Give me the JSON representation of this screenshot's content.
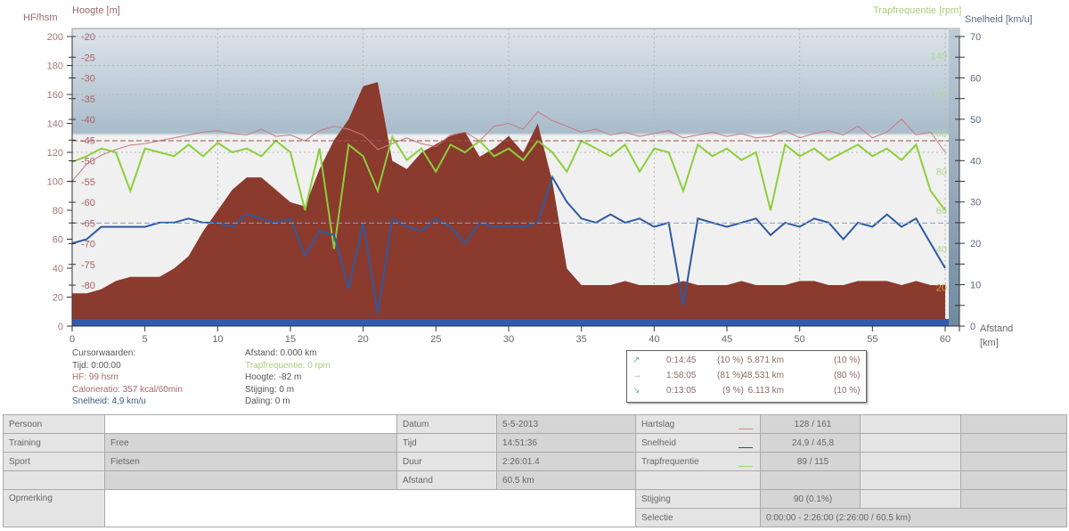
{
  "chart_data": {
    "type": "line",
    "x_label": "Afstand",
    "x_unit": "[km]",
    "x_ticks": [
      0,
      5,
      10,
      15,
      20,
      25,
      30,
      35,
      40,
      45,
      50,
      55,
      60
    ],
    "xlim": [
      0,
      61
    ],
    "axes": {
      "hf": {
        "label": "HF/hsm",
        "ticks": [
          0,
          20,
          40,
          60,
          80,
          100,
          120,
          140,
          160,
          180,
          200
        ],
        "range": [
          0,
          200
        ]
      },
      "altitude": {
        "label": "Hoogte [m]",
        "ticks": [
          -20,
          -25,
          -30,
          -35,
          -40,
          -45,
          -50,
          -55,
          -60,
          -65,
          -70,
          -75,
          -80
        ],
        "range": [
          -86,
          -20
        ]
      },
      "cadence": {
        "label": "Trapfrequentie [rpm]",
        "ticks": [
          20,
          40,
          60,
          80,
          100,
          120,
          140
        ],
        "range": [
          0,
          150
        ]
      },
      "speed": {
        "label": "Snelheid [km/u]",
        "ticks": [
          0,
          10,
          20,
          30,
          40,
          50,
          60,
          70
        ],
        "range": [
          0,
          70
        ]
      }
    },
    "x": [
      0,
      1,
      2,
      3,
      4,
      5,
      6,
      7,
      8,
      9,
      10,
      11,
      12,
      13,
      14,
      15,
      16,
      17,
      18,
      19,
      20,
      21,
      22,
      23,
      24,
      25,
      26,
      27,
      28,
      29,
      30,
      31,
      32,
      33,
      34,
      35,
      36,
      37,
      38,
      39,
      40,
      41,
      42,
      43,
      44,
      45,
      46,
      47,
      48,
      49,
      50,
      51,
      52,
      53,
      54,
      55,
      56,
      57,
      58,
      59,
      60
    ],
    "series": [
      {
        "name": "Hoogte",
        "color": "#8b3a2e",
        "values": [
          -82,
          -82,
          -81,
          -79,
          -78,
          -78,
          -78,
          -76,
          -73,
          -67,
          -62,
          -57,
          -54,
          -54,
          -57,
          -60,
          -61,
          -52,
          -45,
          -40,
          -32,
          -31,
          -50,
          -52,
          -48,
          -46,
          -44,
          -43,
          -49,
          -47,
          -44,
          -48,
          -41,
          -55,
          -76,
          -80,
          -80,
          -80,
          -79,
          -80,
          -80,
          -80,
          -79,
          -80,
          -80,
          -80,
          -79,
          -80,
          -80,
          -80,
          -79,
          -79,
          -80,
          -80,
          -79,
          -79,
          -79,
          -80,
          -79,
          -80,
          -80
        ]
      },
      {
        "name": "Hartslag",
        "color": "#c77b80",
        "values": [
          100,
          112,
          118,
          122,
          125,
          126,
          128,
          130,
          132,
          134,
          135,
          133,
          132,
          136,
          131,
          132,
          128,
          135,
          138,
          136,
          132,
          122,
          126,
          130,
          126,
          124,
          132,
          134,
          128,
          138,
          140,
          136,
          148,
          142,
          138,
          134,
          136,
          132,
          134,
          131,
          133,
          135,
          130,
          132,
          134,
          131,
          133,
          130,
          131,
          135,
          130,
          133,
          135,
          132,
          138,
          130,
          134,
          143,
          132,
          134,
          120
        ]
      },
      {
        "name": "Trapfrequentie",
        "color": "#8ccf3a",
        "values": [
          85,
          88,
          92,
          90,
          70,
          92,
          90,
          88,
          94,
          88,
          95,
          90,
          92,
          88,
          96,
          90,
          60,
          92,
          40,
          94,
          88,
          70,
          98,
          86,
          92,
          80,
          94,
          90,
          96,
          88,
          92,
          86,
          96,
          90,
          80,
          96,
          92,
          88,
          94,
          80,
          92,
          90,
          70,
          94,
          88,
          92,
          86,
          90,
          60,
          94,
          88,
          92,
          86,
          90,
          94,
          88,
          92,
          86,
          94,
          70,
          60
        ]
      },
      {
        "name": "Snelheid",
        "color": "#2c5aa0",
        "values": [
          20,
          21,
          24,
          24,
          24,
          24,
          25,
          25,
          26,
          25,
          25,
          24,
          27,
          26,
          25,
          26,
          17,
          23,
          22,
          9,
          25,
          3,
          26,
          24,
          23,
          26,
          24,
          20,
          25,
          24,
          24,
          24,
          25,
          36,
          30,
          26,
          25,
          27,
          25,
          26,
          24,
          25,
          5,
          26,
          25,
          24,
          25,
          26,
          22,
          25,
          24,
          26,
          25,
          21,
          25,
          24,
          27,
          24,
          26,
          20,
          14
        ]
      }
    ],
    "averages": {
      "hf": 128,
      "speed": 24.9
    },
    "grid": true
  },
  "cursor": {
    "title": "Cursorwaarden:",
    "tijd": "Tijd: 0:00:00",
    "hf": "HF: 99 hsm",
    "calorie": "Calorieratio: 357 kcal/60min",
    "snelheid": "Snelheid: 4,9 km/u",
    "afstand": "Afstand: 0.000 km",
    "trap": "Trapfrequentie: 0 rpm",
    "hoogte": "Hoogte: -82 m",
    "stijging": "Stijging: 0 m",
    "daling": "Daling: 0 m"
  },
  "slope_stats": [
    {
      "icon": "↗",
      "time": "0:14:45",
      "time_pct": "(10 %)",
      "dist": "5.871 km",
      "dist_pct": "(10 %)"
    },
    {
      "icon": "→",
      "time": "1:58:05",
      "time_pct": "(81 %)",
      "dist": "48.531 km",
      "dist_pct": "(80 %)"
    },
    {
      "icon": "↘",
      "time": "0:13:05",
      "time_pct": "(9 %)",
      "dist": "6.113 km",
      "dist_pct": "(10 %)"
    }
  ],
  "table": {
    "persoon": "Persoon",
    "persoon_val": "",
    "training": "Training",
    "training_val": "Free",
    "sport": "Sport",
    "sport_val": "Fietsen",
    "opmerking": "Opmerking",
    "datum": "Datum",
    "datum_val": "5-5-2013",
    "tijd": "Tijd",
    "tijd_val": "14:51:36",
    "duur": "Duur",
    "duur_val": "2:26:01.4",
    "afstand": "Afstand",
    "afstand_val": "60.5 km",
    "hartslag": "Hartslag",
    "hartslag_val": "128 / 161",
    "hartslag_color": "#d48a8a",
    "snelheid": "Snelheid",
    "snelheid_val": "24,9 / 45,8",
    "snelheid_color": "#2c4a8a",
    "trap": "Trapfrequentie",
    "trap_val": "89 / 115",
    "trap_color": "#9ad36a",
    "stijging": "Stijging",
    "stijging_val": "90 (0.1%)",
    "selectie": "Selectie",
    "selectie_val": "0:00:00 - 2:26:00 (2:26:00 / 60.5 km)"
  }
}
